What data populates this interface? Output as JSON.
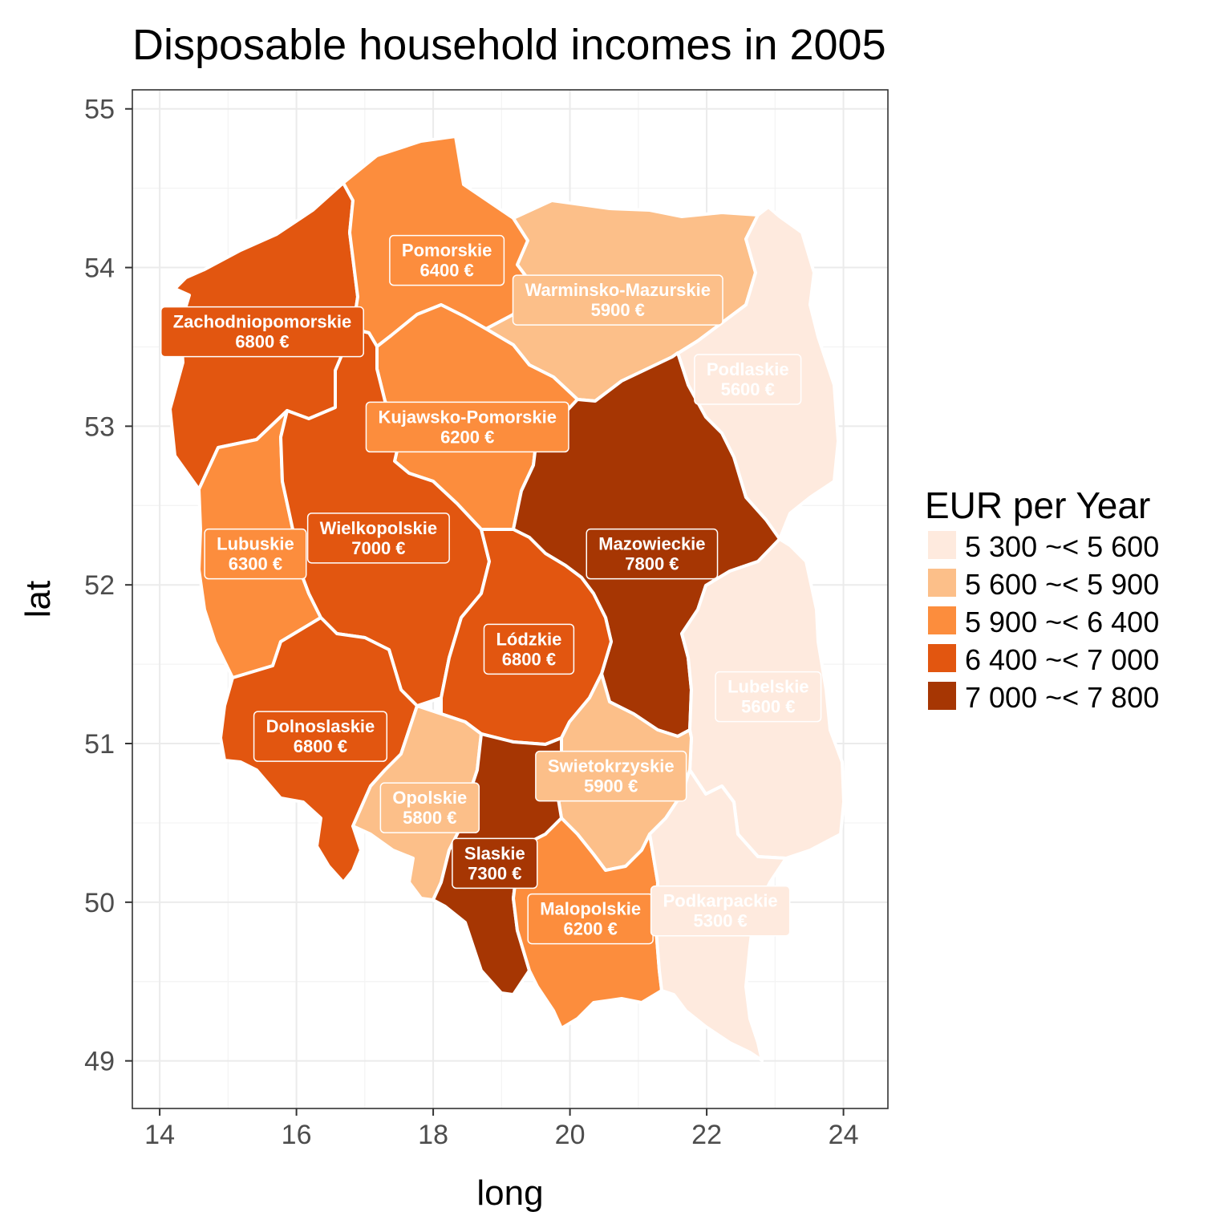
{
  "title": "Disposable household incomes in 2005",
  "chart_data": {
    "type": "choropleth map",
    "x_label": "long",
    "y_label": "lat",
    "x_ticks": [
      14,
      16,
      18,
      20,
      22,
      24
    ],
    "y_ticks": [
      49,
      50,
      51,
      52,
      53,
      54,
      55
    ],
    "x_range": [
      13.6,
      24.65
    ],
    "y_range": [
      48.7,
      55.12
    ],
    "grid": true,
    "legend": {
      "title": "EUR per Year",
      "position": "right",
      "items": [
        {
          "label": "5 300 ~< 5 600",
          "color": "#feeade"
        },
        {
          "label": "5 600 ~< 5 900",
          "color": "#fcbf89"
        },
        {
          "label": "5 900 ~< 6 400",
          "color": "#fc8d3d"
        },
        {
          "label": "6 400 ~< 7 000",
          "color": "#e25610"
        },
        {
          "label": "7 000 ~< 7 800",
          "color": "#a63603"
        }
      ]
    },
    "regions": [
      {
        "name": "Zachodniopomorskie",
        "value_label": "6800 €",
        "value": 6800,
        "class": 3,
        "long": 15.5,
        "lat": 53.6
      },
      {
        "name": "Pomorskie",
        "value_label": "6400 €",
        "value": 6400,
        "class": 2,
        "long": 18.2,
        "lat": 54.05
      },
      {
        "name": "Warminsko-Mazurskie",
        "value_label": "5900 €",
        "value": 5900,
        "class": 1,
        "long": 20.7,
        "lat": 53.8
      },
      {
        "name": "Podlaskie",
        "value_label": "5600 €",
        "value": 5600,
        "class": 0,
        "long": 22.6,
        "lat": 53.3
      },
      {
        "name": "Kujawsko-Pomorskie",
        "value_label": "6200 €",
        "value": 6200,
        "class": 2,
        "long": 18.5,
        "lat": 53.0
      },
      {
        "name": "Lubuskie",
        "value_label": "6300 €",
        "value": 6300,
        "class": 2,
        "long": 15.4,
        "lat": 52.2
      },
      {
        "name": "Wielkopolskie",
        "value_label": "7000 €",
        "value": 7000,
        "class": 3,
        "long": 17.2,
        "lat": 52.3
      },
      {
        "name": "Mazowieckie",
        "value_label": "7800 €",
        "value": 7800,
        "class": 4,
        "long": 21.2,
        "lat": 52.2
      },
      {
        "name": "Lódzkie",
        "value_label": "6800 €",
        "value": 6800,
        "class": 3,
        "long": 19.4,
        "lat": 51.6
      },
      {
        "name": "Lubelskie",
        "value_label": "5600 €",
        "value": 5600,
        "class": 0,
        "long": 22.9,
        "lat": 51.3
      },
      {
        "name": "Dolnoslaskie",
        "value_label": "6800 €",
        "value": 6800,
        "class": 3,
        "long": 16.35,
        "lat": 51.05
      },
      {
        "name": "Opolskie",
        "value_label": "5800 €",
        "value": 5800,
        "class": 1,
        "long": 17.95,
        "lat": 50.6
      },
      {
        "name": "Swietokrzyskie",
        "value_label": "5900 €",
        "value": 5900,
        "class": 1,
        "long": 20.6,
        "lat": 50.8
      },
      {
        "name": "Slaskie",
        "value_label": "7300 €",
        "value": 7300,
        "class": 4,
        "long": 18.9,
        "lat": 50.25
      },
      {
        "name": "Malopolskie",
        "value_label": "6200 €",
        "value": 6200,
        "class": 2,
        "long": 20.3,
        "lat": 49.9
      },
      {
        "name": "Podkarpackie",
        "value_label": "5300 €",
        "value": 5300,
        "class": 0,
        "long": 22.2,
        "lat": 49.95
      }
    ]
  }
}
